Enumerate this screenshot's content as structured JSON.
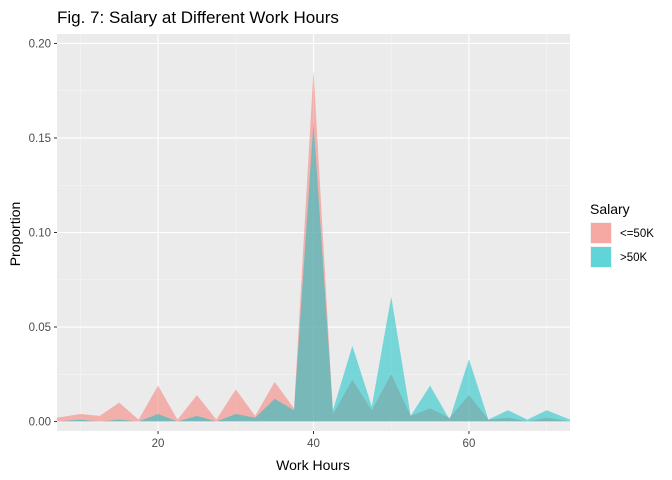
{
  "chart_data": {
    "type": "area",
    "title": "Fig. 7: Salary at Different Work Hours",
    "xlabel": "Work Hours",
    "ylabel": "Proportion",
    "xlim": [
      7,
      73
    ],
    "ylim": [
      -0.005,
      0.205
    ],
    "x_ticks": [
      20,
      40,
      60
    ],
    "y_ticks": [
      0.0,
      0.05,
      0.1,
      0.15,
      0.2
    ],
    "y_tick_labels": [
      "0.00",
      "0.05",
      "0.10",
      "0.15",
      "0.20"
    ],
    "grid": true,
    "legend": {
      "title": "Salary",
      "position": "right"
    },
    "series": [
      {
        "name": "<=50K",
        "color": "#F8766D",
        "points": [
          [
            7,
            0.002
          ],
          [
            10,
            0.004
          ],
          [
            12.5,
            0.003
          ],
          [
            15,
            0.01
          ],
          [
            17.5,
            0.001
          ],
          [
            20,
            0.019
          ],
          [
            22.5,
            0.001
          ],
          [
            25,
            0.014
          ],
          [
            27.5,
            0.001
          ],
          [
            30,
            0.017
          ],
          [
            32.5,
            0.003
          ],
          [
            35,
            0.021
          ],
          [
            37.5,
            0.007
          ],
          [
            40,
            0.186
          ],
          [
            42.5,
            0.004
          ],
          [
            45,
            0.022
          ],
          [
            47.5,
            0.006
          ],
          [
            50,
            0.025
          ],
          [
            52.5,
            0.003
          ],
          [
            55,
            0.007
          ],
          [
            57.5,
            0.002
          ],
          [
            60,
            0.014
          ],
          [
            62.5,
            0.001
          ],
          [
            65,
            0.002
          ],
          [
            67.5,
            0.0
          ],
          [
            70,
            0.002
          ],
          [
            73,
            0.0
          ]
        ]
      },
      {
        "name": ">50K",
        "color": "#00BFC4",
        "points": [
          [
            7,
            0.0
          ],
          [
            10,
            0.001
          ],
          [
            12.5,
            0.0
          ],
          [
            15,
            0.001
          ],
          [
            17.5,
            0.0
          ],
          [
            20,
            0.004
          ],
          [
            22.5,
            0.0
          ],
          [
            25,
            0.003
          ],
          [
            27.5,
            0.0
          ],
          [
            30,
            0.004
          ],
          [
            32.5,
            0.002
          ],
          [
            35,
            0.012
          ],
          [
            37.5,
            0.006
          ],
          [
            40,
            0.158
          ],
          [
            42.5,
            0.006
          ],
          [
            45,
            0.04
          ],
          [
            47.5,
            0.008
          ],
          [
            50,
            0.066
          ],
          [
            52.5,
            0.003
          ],
          [
            55,
            0.019
          ],
          [
            57.5,
            0.001
          ],
          [
            60,
            0.033
          ],
          [
            62.5,
            0.001
          ],
          [
            65,
            0.006
          ],
          [
            67.5,
            0.001
          ],
          [
            70,
            0.006
          ],
          [
            73,
            0.001
          ]
        ]
      }
    ]
  }
}
